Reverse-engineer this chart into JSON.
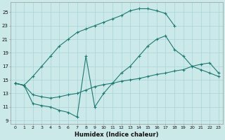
{
  "xlabel": "Humidex (Indice chaleur)",
  "background_color": "#cce9ea",
  "grid_color": "#a8d4d6",
  "line_color": "#1e7a70",
  "xlim": [
    -0.5,
    23.5
  ],
  "ylim": [
    8.5,
    26.5
  ],
  "xticks": [
    0,
    1,
    2,
    3,
    4,
    5,
    6,
    7,
    8,
    9,
    10,
    11,
    12,
    13,
    14,
    15,
    16,
    17,
    18,
    19,
    20,
    21,
    22,
    23
  ],
  "yticks": [
    9,
    11,
    13,
    15,
    17,
    19,
    21,
    23,
    25
  ],
  "line1_x": [
    0,
    1,
    2,
    3,
    4,
    5,
    6,
    7,
    8,
    9,
    10,
    11,
    12,
    13,
    14,
    15,
    16,
    17,
    18
  ],
  "line1_y": [
    14.5,
    14.2,
    15.5,
    17.0,
    18.5,
    20.0,
    21.0,
    22.0,
    22.5,
    23.0,
    23.5,
    24.0,
    24.5,
    25.2,
    25.5,
    25.5,
    25.2,
    24.8,
    23.0
  ],
  "line2_x": [
    0,
    1,
    2,
    3,
    4,
    5,
    6,
    7,
    8,
    9,
    10,
    11,
    12,
    13,
    14,
    15,
    16,
    17,
    18,
    19,
    20,
    21,
    22,
    23
  ],
  "line2_y": [
    14.5,
    14.2,
    12.8,
    12.5,
    12.3,
    12.5,
    12.8,
    13.0,
    13.5,
    14.0,
    14.3,
    14.5,
    14.8,
    15.0,
    15.2,
    15.5,
    15.8,
    16.0,
    16.3,
    16.5,
    17.0,
    17.3,
    17.5,
    16.0
  ],
  "line3_x": [
    0,
    1,
    2,
    3,
    4,
    5,
    6,
    7,
    8,
    9,
    10,
    11,
    12,
    13,
    14,
    15,
    16,
    17,
    18,
    19,
    20,
    21,
    22,
    23
  ],
  "line3_y": [
    14.5,
    14.2,
    11.5,
    11.2,
    11.0,
    10.5,
    10.2,
    9.5,
    18.5,
    11.0,
    13.0,
    14.5,
    16.0,
    17.0,
    18.5,
    20.0,
    21.0,
    21.5,
    19.5,
    18.5,
    17.0,
    16.5,
    16.0,
    15.5
  ]
}
